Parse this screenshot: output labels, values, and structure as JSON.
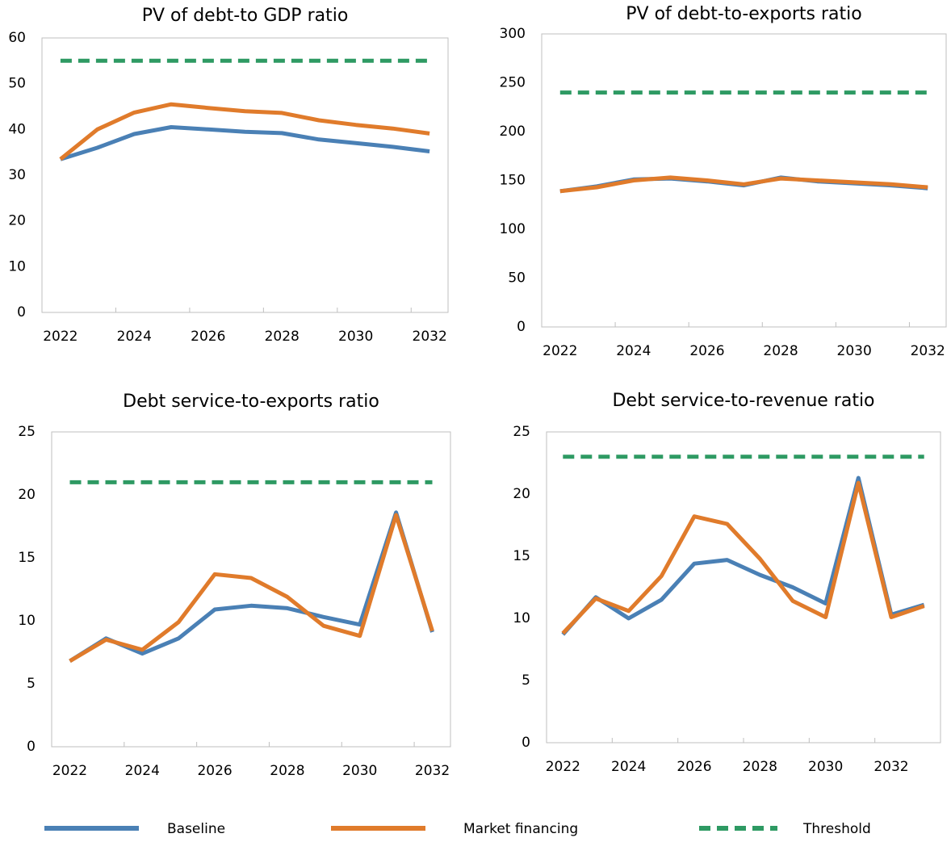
{
  "chart_data": [
    {
      "type": "line",
      "title": "PV of debt-to GDP ratio",
      "categories": [
        "2022",
        null,
        "2024",
        null,
        "2026",
        null,
        "2028",
        null,
        "2030",
        null,
        "2032"
      ],
      "ylim": [
        0,
        60
      ],
      "yticks": [
        0,
        10,
        20,
        30,
        40,
        50,
        60
      ],
      "series": [
        {
          "name": "Baseline",
          "color": "#4a80b5",
          "style": "solid",
          "values": [
            33.5,
            36,
            39,
            40.5,
            40,
            39.5,
            39.2,
            37.8,
            37,
            36.2,
            35.2
          ]
        },
        {
          "name": "Market financing",
          "color": "#e07b2b",
          "style": "solid",
          "values": [
            33.5,
            40,
            43.7,
            45.5,
            44.7,
            44,
            43.6,
            42,
            41,
            40.2,
            39.1
          ]
        },
        {
          "name": "Threshold",
          "color": "#2e9a63",
          "style": "dashed",
          "values": [
            55,
            55,
            55,
            55,
            55,
            55,
            55,
            55,
            55,
            55,
            55
          ]
        }
      ]
    },
    {
      "type": "line",
      "title": "PV of debt-to-exports ratio",
      "categories": [
        "2022",
        null,
        "2024",
        null,
        "2026",
        null,
        "2028",
        null,
        "2030",
        null,
        "2032"
      ],
      "ylim": [
        0,
        300
      ],
      "yticks": [
        0,
        50,
        100,
        150,
        200,
        250,
        300
      ],
      "series": [
        {
          "name": "Baseline",
          "color": "#4a80b5",
          "style": "solid",
          "values": [
            139,
            144,
            151,
            152,
            149,
            145,
            153,
            149,
            147,
            145,
            142
          ]
        },
        {
          "name": "Market financing",
          "color": "#e07b2b",
          "style": "solid",
          "values": [
            139,
            143,
            150,
            153,
            150,
            146,
            152,
            150,
            148,
            146,
            143
          ]
        },
        {
          "name": "Threshold",
          "color": "#2e9a63",
          "style": "dashed",
          "values": [
            240,
            240,
            240,
            240,
            240,
            240,
            240,
            240,
            240,
            240,
            240
          ]
        }
      ]
    },
    {
      "type": "line",
      "title": "Debt service-to-exports ratio",
      "categories": [
        "2022",
        null,
        "2024",
        null,
        "2026",
        null,
        "2028",
        null,
        "2030",
        null,
        "2032"
      ],
      "ylim": [
        0,
        25
      ],
      "yticks": [
        0,
        5,
        10,
        15,
        20,
        25
      ],
      "series": [
        {
          "name": "Baseline",
          "color": "#4a80b5",
          "style": "solid",
          "values": [
            6.8,
            8.6,
            7.4,
            8.6,
            10.9,
            11.2,
            11.0,
            10.3,
            9.7,
            18.6,
            9.1
          ]
        },
        {
          "name": "Market financing",
          "color": "#e07b2b",
          "style": "solid",
          "values": [
            6.8,
            8.5,
            7.7,
            9.9,
            13.7,
            13.4,
            11.9,
            9.6,
            8.8,
            18.4,
            9.2
          ]
        },
        {
          "name": "Threshold",
          "color": "#2e9a63",
          "style": "dashed",
          "values": [
            21,
            21,
            21,
            21,
            21,
            21,
            21,
            21,
            21,
            21,
            21
          ]
        }
      ]
    },
    {
      "type": "line",
      "title": "Debt service-to-revenue ratio",
      "categories": [
        "2022",
        null,
        "2024",
        null,
        "2026",
        null,
        "2028",
        null,
        "2030",
        null,
        "2032",
        null
      ],
      "ylim": [
        0,
        25
      ],
      "yticks": [
        0,
        5,
        10,
        15,
        20,
        25
      ],
      "series": [
        {
          "name": "Baseline",
          "color": "#4a80b5",
          "style": "solid",
          "values": [
            8.7,
            11.7,
            10,
            11.5,
            14.4,
            14.7,
            13.5,
            12.5,
            11.2,
            21.3,
            10.3,
            11.1
          ]
        },
        {
          "name": "Market financing",
          "color": "#e07b2b",
          "style": "solid",
          "values": [
            8.8,
            11.6,
            10.6,
            13.4,
            18.2,
            17.6,
            14.8,
            11.4,
            10.1,
            20.9,
            10.1,
            11
          ]
        },
        {
          "name": "Threshold",
          "color": "#2e9a63",
          "style": "dashed",
          "values": [
            23,
            23,
            23,
            23,
            23,
            23,
            23,
            23,
            23,
            23,
            23,
            23
          ]
        }
      ]
    }
  ]
}
